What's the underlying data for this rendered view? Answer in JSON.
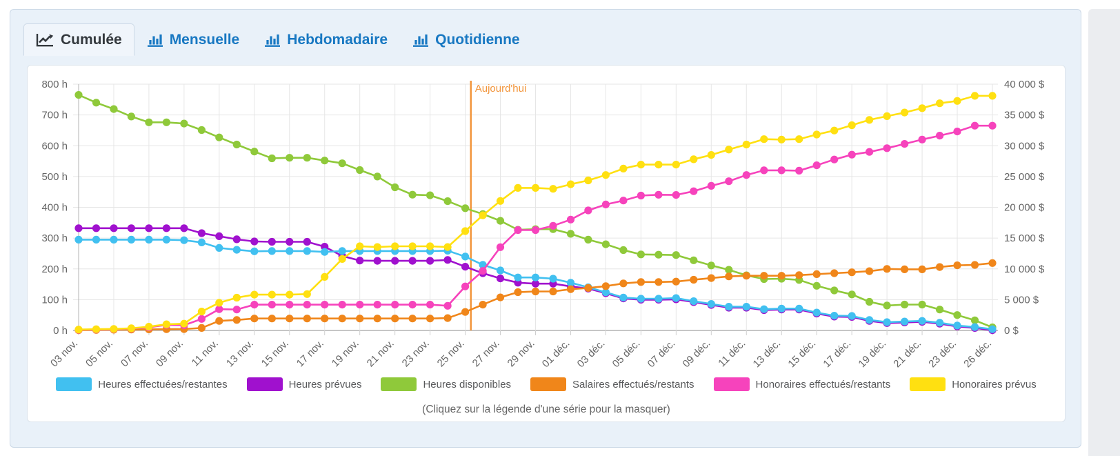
{
  "tabs": [
    {
      "label": "Cumulée",
      "icon": "line-chart-icon",
      "active": true
    },
    {
      "label": "Mensuelle",
      "icon": "bar-chart-icon",
      "active": false
    },
    {
      "label": "Hebdomadaire",
      "icon": "bar-chart-icon",
      "active": false
    },
    {
      "label": "Quotidienne",
      "icon": "bar-chart-icon",
      "active": false
    }
  ],
  "chart_data": {
    "type": "line",
    "title": "",
    "legend_hint": "(Cliquez sur la légende d'une série pour la masquer)",
    "legend_position": "bottom",
    "grid": true,
    "points_per_label": 2,
    "x_labels": [
      "03 nov.",
      "05 nov.",
      "07 nov.",
      "09 nov.",
      "11 nov.",
      "13 nov.",
      "15 nov.",
      "17 nov.",
      "19 nov.",
      "21 nov.",
      "23 nov.",
      "25 nov.",
      "27 nov.",
      "29 nov.",
      "01 déc.",
      "03 déc.",
      "05 déc.",
      "07 déc.",
      "09 déc.",
      "11 déc.",
      "13 déc.",
      "15 déc.",
      "17 déc.",
      "19 déc.",
      "21 déc.",
      "23 déc.",
      "26 déc."
    ],
    "y_left": {
      "unit": "h",
      "min": 0,
      "max": 800,
      "tick_labels": [
        "0 h",
        "100 h",
        "200 h",
        "300 h",
        "400 h",
        "500 h",
        "600 h",
        "700 h",
        "800 h"
      ]
    },
    "y_right": {
      "unit": "$",
      "min": 0,
      "max": 40000,
      "tick_labels": [
        "0 $",
        "5 000 $",
        "10 000 $",
        "15 000 $",
        "20 000 $",
        "25 000 $",
        "30 000 $",
        "35 000 $",
        "40 000 $"
      ]
    },
    "today_line": {
      "label": "Aujourd'hui",
      "near_x_label": "25 nov.",
      "position_index": 22.32,
      "color": "#F2953B"
    },
    "series": [
      {
        "name": "Heures effectuées/restantes",
        "color": "#41C0F0",
        "axis": "left",
        "values": [
          295,
          295,
          295,
          295,
          295,
          295,
          293,
          286,
          268,
          262,
          257,
          258,
          258,
          258,
          255,
          258,
          258,
          258,
          258,
          258,
          258,
          259,
          240,
          213,
          195,
          172,
          172,
          168,
          155,
          140,
          124,
          107,
          103,
          103,
          105,
          95,
          86,
          77,
          77,
          69,
          71,
          71,
          58,
          48,
          47,
          34,
          27,
          29,
          31,
          25,
          16,
          11,
          4
        ]
      },
      {
        "name": "Heures prévues",
        "color": "#A011CE",
        "axis": "left",
        "values": [
          332,
          332,
          332,
          332,
          332,
          332,
          332,
          316,
          306,
          296,
          289,
          288,
          288,
          288,
          272,
          242,
          227,
          226,
          226,
          226,
          226,
          229,
          207,
          186,
          169,
          155,
          152,
          152,
          143,
          136,
          121,
          104,
          100,
          100,
          101,
          92,
          83,
          74,
          74,
          66,
          68,
          68,
          55,
          45,
          44,
          31,
          24,
          26,
          28,
          22,
          13,
          8,
          1
        ]
      },
      {
        "name": "Heures disponibles",
        "color": "#8FC93A",
        "axis": "left",
        "values": [
          765,
          740,
          719,
          695,
          676,
          676,
          672,
          651,
          627,
          604,
          581,
          559,
          561,
          561,
          552,
          543,
          521,
          500,
          465,
          441,
          439,
          420,
          397,
          378,
          356,
          327,
          329,
          329,
          314,
          295,
          280,
          261,
          247,
          246,
          245,
          228,
          211,
          197,
          179,
          167,
          168,
          164,
          145,
          130,
          117,
          93,
          81,
          84,
          84,
          68,
          50,
          33,
          10
        ]
      },
      {
        "name": "Salaires effectués/restants",
        "color": "#F0861A",
        "axis": "right",
        "values": [
          50,
          80,
          120,
          150,
          180,
          200,
          220,
          400,
          1550,
          1700,
          1940,
          1940,
          1940,
          1940,
          1940,
          1940,
          1940,
          1940,
          1940,
          1940,
          1940,
          2000,
          3000,
          4190,
          5370,
          6220,
          6330,
          6330,
          6700,
          6900,
          7190,
          7640,
          7860,
          7860,
          7930,
          8240,
          8500,
          8770,
          8880,
          8880,
          8880,
          8990,
          9140,
          9300,
          9440,
          9630,
          10000,
          9930,
          9930,
          10300,
          10580,
          10640,
          10950
        ]
      },
      {
        "name": "Honoraires effectués/restants",
        "color": "#F643BC",
        "axis": "right",
        "values": [
          100,
          150,
          200,
          300,
          500,
          900,
          850,
          1870,
          3450,
          3400,
          4190,
          4190,
          4190,
          4190,
          4190,
          4190,
          4190,
          4190,
          4190,
          4190,
          4190,
          4000,
          7150,
          9670,
          13520,
          16300,
          16300,
          17000,
          18000,
          19500,
          20460,
          21100,
          21900,
          22040,
          22000,
          22610,
          23480,
          24230,
          25240,
          26000,
          26000,
          25950,
          26820,
          27770,
          28550,
          29000,
          29600,
          30300,
          31000,
          31640,
          32310,
          33260,
          33260
        ]
      },
      {
        "name": "Honoraires prévus",
        "color": "#FFE011",
        "axis": "right",
        "values": [
          150,
          200,
          250,
          350,
          600,
          1000,
          1100,
          3070,
          4490,
          5320,
          5810,
          5810,
          5810,
          5900,
          8690,
          11610,
          13670,
          13550,
          13670,
          13670,
          13670,
          13550,
          16140,
          18700,
          21030,
          23150,
          23150,
          23000,
          23740,
          24370,
          25240,
          26290,
          26930,
          26930,
          26930,
          27800,
          28500,
          29380,
          30200,
          31070,
          31000,
          31070,
          31820,
          32470,
          33330,
          34200,
          34800,
          35400,
          36100,
          36900,
          37280,
          38110,
          38110
        ]
      }
    ],
    "draw_order": [
      2,
      1,
      0,
      3,
      4,
      5
    ],
    "colors": {
      "grid": "#E6E6E6",
      "axis_line": "#B3B3B3",
      "tick_text": "#666666",
      "tab_active_text": "#33383D",
      "tab_text": "#1878C2",
      "card_bg": "#E9F1F9"
    }
  }
}
